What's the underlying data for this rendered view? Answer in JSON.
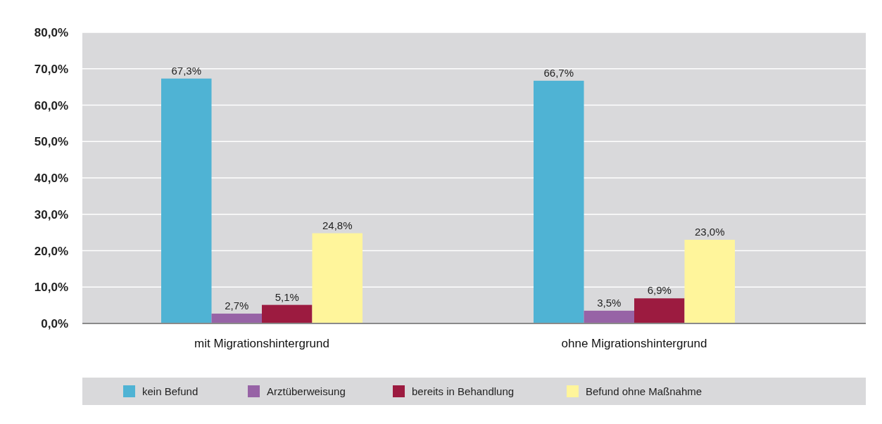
{
  "chart_data": {
    "type": "bar",
    "categories": [
      "mit Migrationshintergrund",
      "ohne Migrationshintergrund"
    ],
    "series": [
      {
        "name": "kein Befund",
        "color": "#4fb3d4",
        "values": [
          67.3,
          66.7
        ]
      },
      {
        "name": "Arztüberweisung",
        "color": "#9763a6",
        "values": [
          2.7,
          3.5
        ]
      },
      {
        "name": "bereits in Behandlung",
        "color": "#9c1b40",
        "values": [
          5.1,
          6.9
        ]
      },
      {
        "name": "Befund ohne Maßnahme",
        "color": "#fff59b",
        "values": [
          24.8,
          23.0
        ]
      }
    ],
    "value_labels": [
      [
        "67,3%",
        "66,7%"
      ],
      [
        "2,7%",
        "3,5%"
      ],
      [
        "5,1%",
        "6,9%"
      ],
      [
        "24,8%",
        "23,0%"
      ]
    ],
    "ylim": [
      0,
      80
    ],
    "yticks": [
      {
        "value": 0,
        "label": "0,0%"
      },
      {
        "value": 10,
        "label": "10,0%"
      },
      {
        "value": 20,
        "label": "20,0%"
      },
      {
        "value": 30,
        "label": "30,0%"
      },
      {
        "value": 40,
        "label": "40,0%"
      },
      {
        "value": 50,
        "label": "50,0%"
      },
      {
        "value": 60,
        "label": "60,0%"
      },
      {
        "value": 70,
        "label": "70,0%"
      },
      {
        "value": 80,
        "label": "80,0%"
      }
    ],
    "grid": "y",
    "legend": "bottom"
  }
}
